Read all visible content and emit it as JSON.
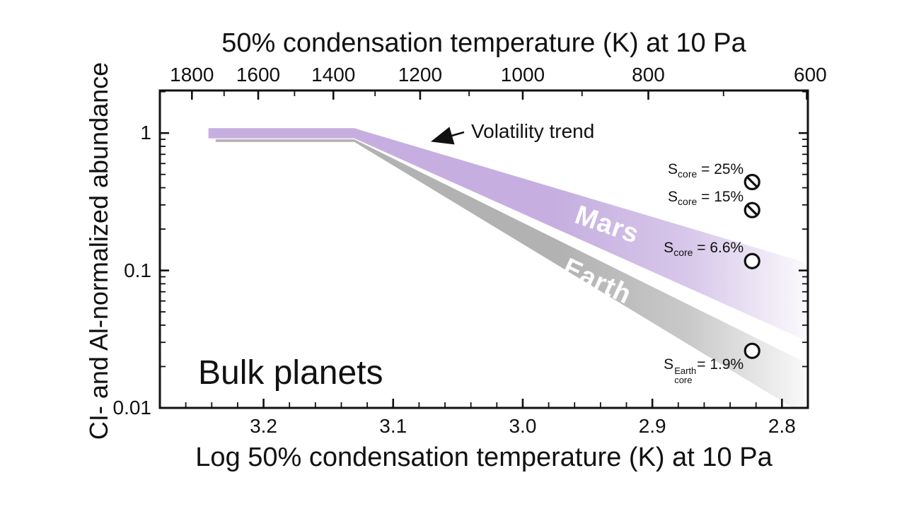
{
  "chart_data": {
    "type": "area",
    "title": "",
    "description": "Volatility trend of bulk planets: CI- and Al-normalized abundance vs 50% condensation temperature, with Mars (purple) and Earth (gray) depletion bands and sulfur core-content data points",
    "grid": false,
    "legend": "none",
    "background": "#ffffff",
    "frame_color": "#111111",
    "top_axis": {
      "label": "50% condensation temperature (K) at 10 Pa",
      "scale": "log",
      "major_ticks": [
        1800,
        1600,
        1400,
        1200,
        1000,
        800,
        600
      ],
      "minor_ticks": [
        1700,
        1500,
        1300,
        1100,
        900,
        700
      ]
    },
    "bottom_axis": {
      "label": "Log 50% condensation temperature (K) at 10 Pa",
      "scale": "linear",
      "major_ticks": [
        "3.2",
        "3.1",
        "3.0",
        "2.9",
        "2.8"
      ],
      "minor_step": 0.02,
      "range_left_to_right": [
        3.28,
        2.78
      ]
    },
    "y_axis": {
      "label": "CI- and Al-normalized abundance",
      "scale": "log",
      "major_ticks": [
        "1",
        "0.1",
        "0.01"
      ],
      "major_tick_values": [
        1,
        0.1,
        0.01
      ],
      "range_top_to_bottom": [
        2.04,
        0.01
      ]
    },
    "bands": [
      {
        "name": "mars",
        "label": "Mars",
        "color": "#c6afe0",
        "label_color": "#ffffff",
        "vertices_logT_value": [
          [
            3.2425,
            1.085
          ],
          [
            3.13,
            1.085
          ],
          [
            2.78,
            0.113
          ],
          [
            2.78,
            0.0305
          ],
          [
            3.13,
            0.915
          ],
          [
            3.2425,
            0.915
          ]
        ],
        "label_anchor_logT_value": [
          2.935,
          0.205
        ],
        "label_rotation_deg": 19
      },
      {
        "name": "earth",
        "label": "Earth",
        "color": "#b2b2b2",
        "label_color": "#ffffff",
        "vertices_logT_value": [
          [
            3.237,
            0.9
          ],
          [
            3.13,
            0.9
          ],
          [
            2.78,
            0.021
          ],
          [
            2.78,
            0.0086
          ],
          [
            3.13,
            0.862
          ],
          [
            3.237,
            0.862
          ]
        ],
        "label_anchor_logT_value": [
          2.9425,
          0.079
        ],
        "label_rotation_deg": 25
      }
    ],
    "points": [
      {
        "name": "mars-score-25",
        "label_base": "S",
        "label_sub": "core",
        "label_sup": "",
        "label_value": " = 25%",
        "logT": 2.823,
        "value": 0.44,
        "marker": "slashed-circle",
        "label_side": "above-left"
      },
      {
        "name": "mars-score-15",
        "label_base": "S",
        "label_sub": "core",
        "label_sup": "",
        "label_value": " = 15%",
        "logT": 2.823,
        "value": 0.275,
        "marker": "slashed-circle",
        "label_side": "above-left"
      },
      {
        "name": "mars-score-6p6",
        "label_base": "S",
        "label_sub": "core",
        "label_sup": "",
        "label_value": " = 6.6%",
        "logT": 2.823,
        "value": 0.117,
        "marker": "open-circle",
        "label_side": "above-left"
      },
      {
        "name": "earth-score-1p9",
        "label_base": "S",
        "label_sub": "core",
        "label_sup": "Earth",
        "label_value": "= 1.9%",
        "logT": 2.823,
        "value": 0.026,
        "marker": "open-circle",
        "label_side": "below-left"
      }
    ],
    "annotations": [
      {
        "name": "volatility-trend",
        "text": "Volatility trend",
        "arrow": true
      },
      {
        "name": "bulk-planets",
        "text": "Bulk planets",
        "arrow": false
      }
    ]
  }
}
